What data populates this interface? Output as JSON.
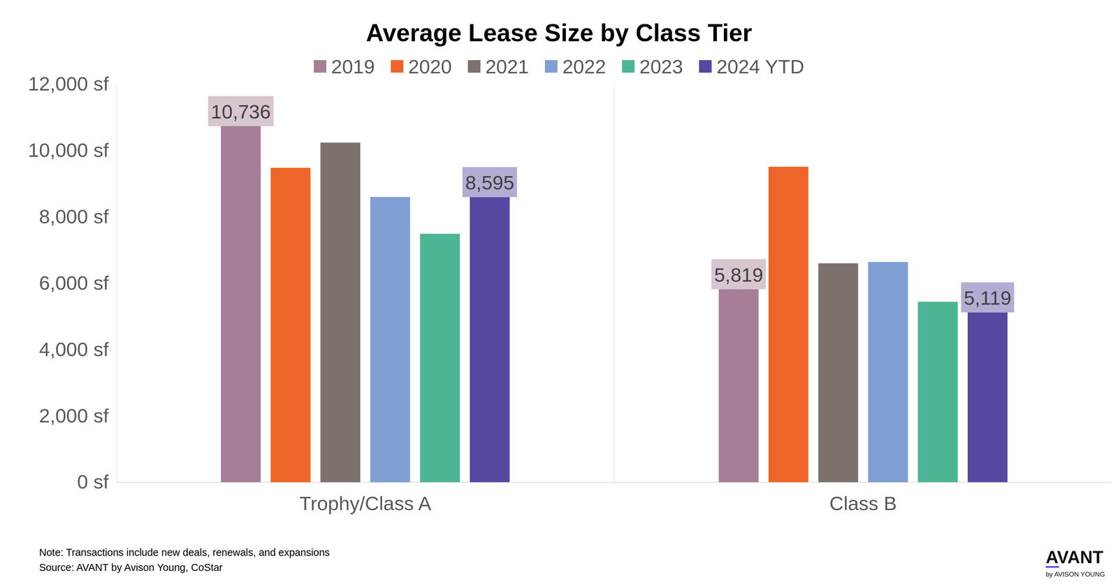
{
  "chart_data": {
    "type": "bar",
    "title": "Average Lease Size by Class Tier",
    "categories": [
      "Trophy/Class A",
      "Class B"
    ],
    "series": [
      {
        "name": "2019",
        "color": "#a67f96",
        "values": [
          10736,
          5819
        ],
        "value_labels": [
          "10,736",
          "5,819"
        ]
      },
      {
        "name": "2020",
        "color": "#ee6529",
        "values": [
          9480,
          9510
        ]
      },
      {
        "name": "2021",
        "color": "#7c716c",
        "values": [
          10240,
          6600
        ]
      },
      {
        "name": "2022",
        "color": "#7f9ed3",
        "values": [
          8600,
          6640
        ]
      },
      {
        "name": "2023",
        "color": "#4db596",
        "values": [
          7490,
          5440
        ]
      },
      {
        "name": "2024 YTD",
        "color": "#5548a0",
        "values": [
          8595,
          5119
        ],
        "value_labels": [
          "8,595",
          "5,119"
        ]
      }
    ],
    "ylim": [
      0,
      12000
    ],
    "yticks": [
      {
        "value": 0,
        "label": "0 sf"
      },
      {
        "value": 2000,
        "label": "2,000 sf"
      },
      {
        "value": 4000,
        "label": "4,000 sf"
      },
      {
        "value": 6000,
        "label": "6,000 sf"
      },
      {
        "value": 8000,
        "label": "8,000 sf"
      },
      {
        "value": 10000,
        "label": "10,000 sf"
      },
      {
        "value": 12000,
        "label": "12,000 sf"
      }
    ],
    "grid": false,
    "legend": "top",
    "annotations": [
      "Note: Transactions include new deals, renewals, and expansions",
      "Source: AVANT by Avison Young, CoStar"
    ]
  },
  "logo": {
    "text": "AVANT",
    "subtext": "by AVISON YOUNG"
  }
}
